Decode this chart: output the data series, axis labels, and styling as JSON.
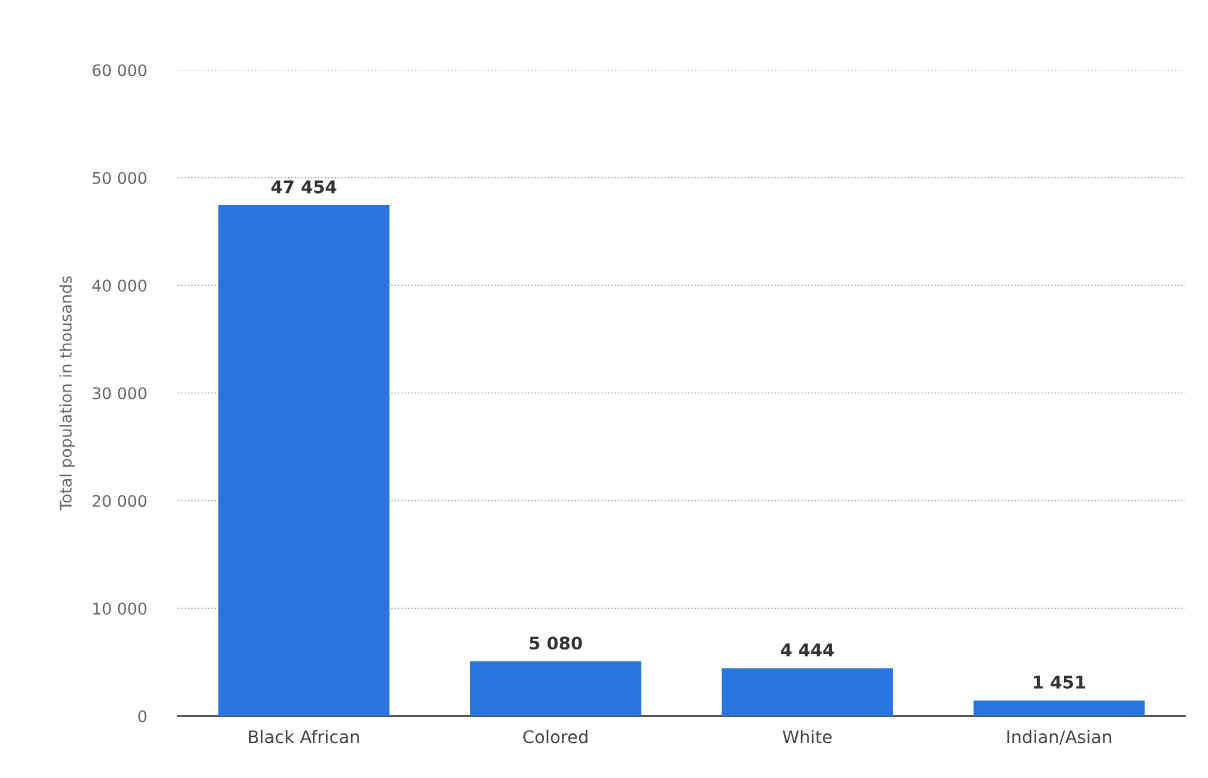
{
  "chart_data": {
    "type": "bar",
    "ylabel": "Total population in thousands",
    "categories": [
      "Black African",
      "Colored",
      "White",
      "Indian/Asian"
    ],
    "values": [
      47454,
      5080,
      4444,
      1451
    ],
    "value_labels": [
      "47 454",
      "5 080",
      "4 444",
      "1 451"
    ],
    "color": "#2876dd",
    "ylim": [
      0,
      60000
    ],
    "yticks": [
      {
        "value": 0,
        "label": "0"
      },
      {
        "value": 10000,
        "label": "10 000"
      },
      {
        "value": 20000,
        "label": "20 000"
      },
      {
        "value": 30000,
        "label": "30 000"
      },
      {
        "value": 40000,
        "label": "40 000"
      },
      {
        "value": 50000,
        "label": "50 000"
      },
      {
        "value": 60000,
        "label": "60 000"
      }
    ],
    "grid": "y"
  }
}
